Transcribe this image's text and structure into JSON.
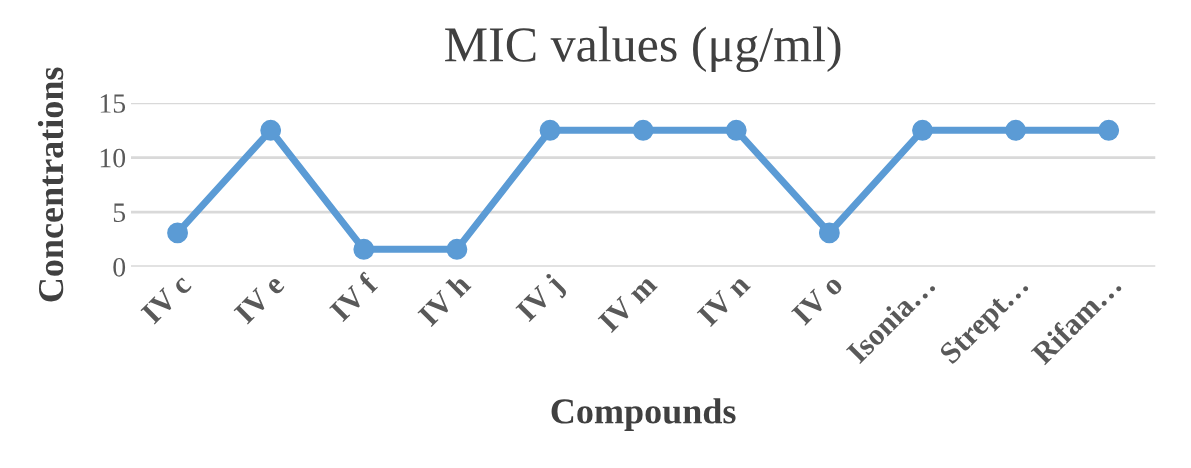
{
  "chart_data": {
    "type": "line",
    "title": "MIC values (μg/ml)",
    "xlabel": "Compounds",
    "ylabel": "Concentrations",
    "categories": [
      "IV c",
      "IV e",
      "IV f",
      "IV h",
      "IV j",
      "IV m",
      "IV n",
      "IV o",
      "Isonia…",
      "Strept…",
      "Rifam…"
    ],
    "series": [
      {
        "color": "#5b9bd5",
        "values": [
          3.1,
          12.5,
          1.6,
          1.6,
          12.5,
          12.5,
          12.5,
          3.1,
          12.5,
          12.5,
          12.5
        ]
      }
    ],
    "ylim": [
      0,
      15
    ],
    "yticks": [
      0,
      5,
      10,
      15
    ],
    "grid": "y",
    "marker": "circle",
    "line_style": "solid"
  }
}
